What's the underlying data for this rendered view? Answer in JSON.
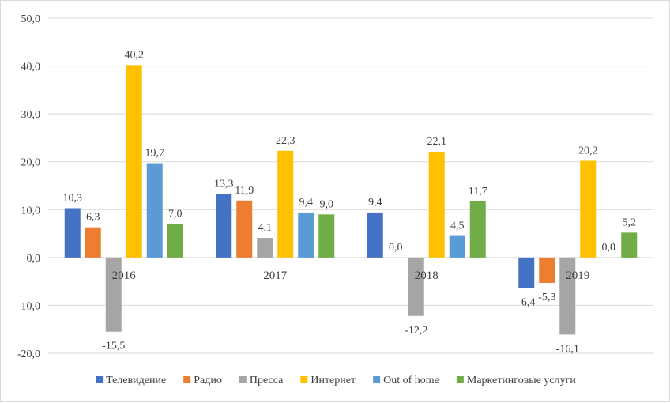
{
  "chart_data": {
    "type": "bar",
    "title": "",
    "xlabel": "",
    "ylabel": "",
    "ylim": [
      -20,
      50
    ],
    "yticks": [
      "50,0",
      "40,0",
      "30,0",
      "20,0",
      "10,0",
      "0,0",
      "-10,0",
      "-20,0"
    ],
    "ytick_values": [
      50,
      40,
      30,
      20,
      10,
      0,
      -10,
      -20
    ],
    "categories": [
      "2016",
      "2017",
      "2018",
      "2019"
    ],
    "series": [
      {
        "name": "Телевидение",
        "color": "#4472C4",
        "values": [
          10.3,
          13.3,
          9.4,
          -6.4
        ],
        "labels": [
          "10,3",
          "13,3",
          "9,4",
          "-6,4"
        ]
      },
      {
        "name": "Радио",
        "color": "#ED7D31",
        "values": [
          6.3,
          11.9,
          0.0,
          -5.3
        ],
        "labels": [
          "6,3",
          "11,9",
          "0,0",
          "-5,3"
        ]
      },
      {
        "name": "Пресса",
        "color": "#A5A5A5",
        "values": [
          -15.5,
          4.1,
          -12.2,
          -16.1
        ],
        "labels": [
          "-15,5",
          "4,1",
          "-12,2",
          "-16,1"
        ]
      },
      {
        "name": "Интернет",
        "color": "#FFC000",
        "values": [
          40.2,
          22.3,
          22.1,
          20.2
        ],
        "labels": [
          "40,2",
          "22,3",
          "22,1",
          "20,2"
        ]
      },
      {
        "name": "Out of home",
        "color": "#5B9BD5",
        "values": [
          19.7,
          9.4,
          4.5,
          0.0
        ],
        "labels": [
          "19,7",
          "9,4",
          "4,5",
          "0,0"
        ]
      },
      {
        "name": "Маркетинговые услуги",
        "color": "#70AD47",
        "values": [
          7.0,
          9.0,
          11.7,
          5.2
        ],
        "labels": [
          "7,0",
          "9,0",
          "11,7",
          "5,2"
        ]
      }
    ],
    "grid": true,
    "legend_position": "bottom"
  }
}
